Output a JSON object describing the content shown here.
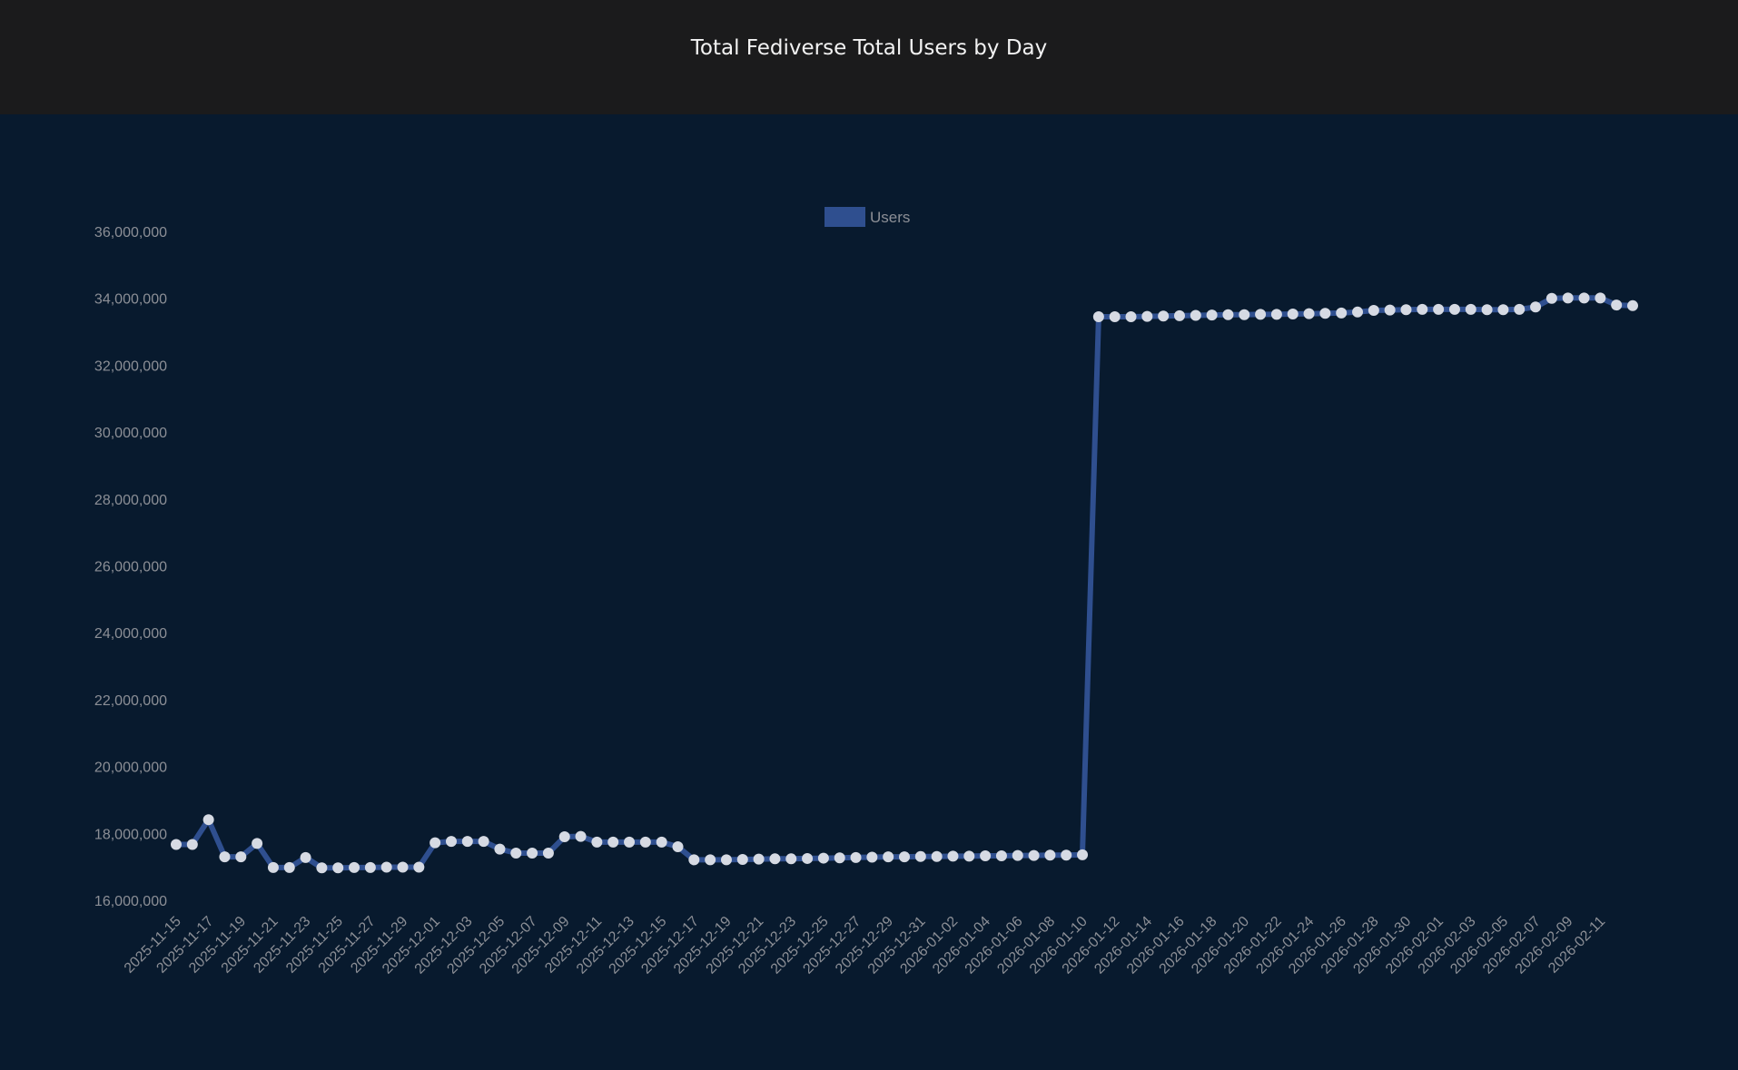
{
  "header": {
    "title": "Total Fediverse Total Users by Day"
  },
  "colors": {
    "line": "#2f4f8f",
    "point": "#d6dae3",
    "background": "#081a2e",
    "header": "#1b1b1c",
    "tick": "#8c8f96"
  },
  "chart_data": {
    "type": "line",
    "title": "Total Fediverse Total Users by Day",
    "xlabel": "",
    "ylabel": "",
    "ylim": [
      16000000,
      36000000
    ],
    "yticks": [
      16000000,
      18000000,
      20000000,
      22000000,
      24000000,
      26000000,
      28000000,
      30000000,
      32000000,
      34000000,
      36000000
    ],
    "ytick_labels": [
      "16,000,000",
      "18,000,000",
      "20,000,000",
      "22,000,000",
      "24,000,000",
      "26,000,000",
      "28,000,000",
      "30,000,000",
      "32,000,000",
      "34,000,000",
      "36,000,000"
    ],
    "xtick_labels": [
      "2025-11-15",
      "2025-11-17",
      "2025-11-19",
      "2025-11-21",
      "2025-11-23",
      "2025-11-25",
      "2025-11-27",
      "2025-11-29",
      "2025-12-01",
      "2025-12-03",
      "2025-12-05",
      "2025-12-07",
      "2025-12-09",
      "2025-12-11",
      "2025-12-13",
      "2025-12-15",
      "2025-12-17",
      "2025-12-19",
      "2025-12-21",
      "2025-12-23",
      "2025-12-25",
      "2025-12-27",
      "2025-12-29",
      "2025-12-31",
      "2026-01-02",
      "2026-01-04",
      "2026-01-06",
      "2026-01-08",
      "2026-01-10",
      "2026-01-12",
      "2026-01-14",
      "2026-01-16",
      "2026-01-18",
      "2026-01-20",
      "2026-01-22",
      "2026-01-24",
      "2026-01-26",
      "2026-01-28",
      "2026-01-30",
      "2026-02-01",
      "2026-02-03",
      "2026-02-05",
      "2026-02-07",
      "2026-02-09",
      "2026-02-11"
    ],
    "grid": false,
    "legend_position": "top-center",
    "series": [
      {
        "name": "Users",
        "values": [
          17670000,
          17670000,
          18410000,
          17300000,
          17300000,
          17700000,
          16980000,
          16980000,
          17280000,
          16970000,
          16970000,
          16980000,
          16980000,
          16990000,
          16990000,
          16990000,
          17720000,
          17760000,
          17760000,
          17760000,
          17530000,
          17410000,
          17410000,
          17410000,
          17900000,
          17910000,
          17740000,
          17740000,
          17740000,
          17740000,
          17740000,
          17600000,
          17210000,
          17210000,
          17210000,
          17220000,
          17230000,
          17240000,
          17240000,
          17250000,
          17260000,
          17270000,
          17280000,
          17290000,
          17300000,
          17300000,
          17310000,
          17310000,
          17320000,
          17320000,
          17330000,
          17330000,
          17340000,
          17340000,
          17350000,
          17350000,
          17360000,
          33450000,
          33450000,
          33450000,
          33460000,
          33470000,
          33480000,
          33490000,
          33500000,
          33510000,
          33510000,
          33520000,
          33520000,
          33530000,
          33540000,
          33550000,
          33560000,
          33590000,
          33640000,
          33650000,
          33660000,
          33670000,
          33670000,
          33670000,
          33670000,
          33660000,
          33660000,
          33670000,
          33740000,
          34000000,
          34010000,
          34010000,
          34010000,
          33800000,
          33780000
        ]
      }
    ]
  }
}
